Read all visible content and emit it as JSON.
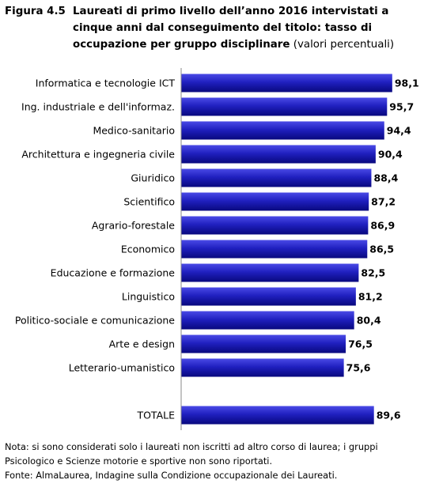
{
  "figure": {
    "label": "Figura 4.5",
    "title": "Laureati di primo livello dell’anno 2016 intervistati a cinque anni dal conseguimento del titolo: tasso di occupazione per gruppo disciplinare",
    "subtitle": "(valori percentuali)"
  },
  "chart_data": {
    "type": "bar",
    "orientation": "horizontal",
    "categories": [
      "Informatica e tecnologie ICT",
      "Ing. industriale e dell'informaz.",
      "Medico-sanitario",
      "Architettura e ingegneria civile",
      "Giuridico",
      "Scientifico",
      "Agrario-forestale",
      "Economico",
      "Educazione e formazione",
      "Linguistico",
      "Politico-sociale e comunicazione",
      "Arte e design",
      "Letterario-umanistico"
    ],
    "values": [
      98.1,
      95.7,
      94.4,
      90.4,
      88.4,
      87.2,
      86.9,
      86.5,
      82.5,
      81.2,
      80.4,
      76.5,
      75.6
    ],
    "value_labels": [
      "98,1",
      "95,7",
      "94,4",
      "90,4",
      "88,4",
      "87,2",
      "86,9",
      "86,5",
      "82,5",
      "81,2",
      "80,4",
      "76,5",
      "75,6"
    ],
    "total": {
      "category": "TOTALE",
      "value": 89.6,
      "value_label": "89,6"
    },
    "xlim": [
      0,
      100
    ],
    "grid": false,
    "legend": "none",
    "colors": {
      "bar_light": "#3a3ad8",
      "bar_dark": "#0a0a8a",
      "axis": "#8a8a8a"
    }
  },
  "notes": {
    "line1": "Nota: si sono considerati solo i laureati non iscritti ad altro corso di laurea; i gruppi",
    "line2": "Psicologico e Scienze motorie e sportive non sono riportati.",
    "source": "Fonte: AlmaLaurea, Indagine sulla Condizione occupazionale dei Laureati."
  }
}
